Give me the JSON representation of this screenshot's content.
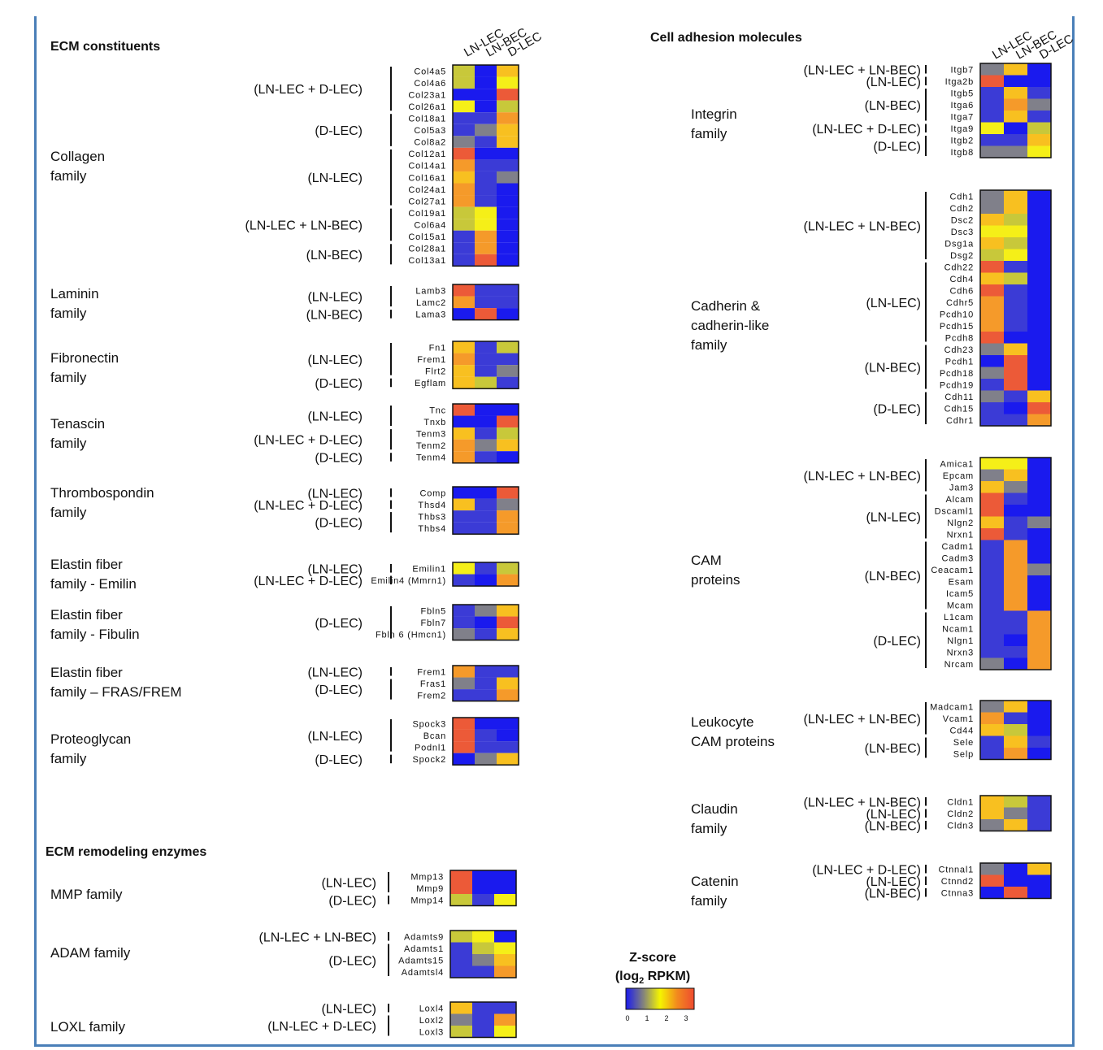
{
  "colorscale": {
    "title_line1": "Z-score",
    "title_line2_pre": "(log",
    "title_line2_sub": "2",
    "title_line2_post": " RPKM)",
    "ticks": [
      "0",
      "1",
      "2",
      "3"
    ],
    "stops": [
      "#1a1aee",
      "#808080",
      "#f5f500",
      "#f28a1e",
      "#ee4a30"
    ]
  },
  "palette": {
    "B": "#1a1aee",
    "b": "#3b3bd6",
    "g": "#80808a",
    "y": "#f5ef18",
    "k": "#c8c83a",
    "o": "#f8c020",
    "O": "#f59a2a",
    "R": "#ec5a38"
  },
  "chart_data": [
    {
      "type": "heatmap",
      "title": "ECM constituents",
      "columns": [
        "LN-LEC",
        "LN-BEC",
        "D-LEC"
      ],
      "families": [
        {
          "name": [
            "Collagen",
            "family"
          ],
          "groups": [
            {
              "label": "(LN-LEC + D-LEC)",
              "rows": [
                [
                  "Col4a5",
                  "kBo"
                ],
                [
                  "Col4a6",
                  "kBy"
                ],
                [
                  "Col23a1",
                  "BBR"
                ],
                [
                  "Col26a1",
                  "yBk"
                ]
              ]
            },
            {
              "label": "(D-LEC)",
              "rows": [
                [
                  "Col18a1",
                  "bbO"
                ],
                [
                  "Col5a3",
                  "bgo"
                ],
                [
                  "Col8a2",
                  "gbo"
                ]
              ]
            },
            {
              "label": "(LN-LEC)",
              "rows": [
                [
                  "Col12a1",
                  "RBB"
                ],
                [
                  "Col14a1",
                  "Obb"
                ],
                [
                  "Col16a1",
                  "obg"
                ],
                [
                  "Col24a1",
                  "ObB"
                ],
                [
                  "Col27a1",
                  "ObB"
                ]
              ]
            },
            {
              "label": "(LN-LEC + LN-BEC)",
              "rows": [
                [
                  "Col19a1",
                  "kyB"
                ],
                [
                  "Col6a4",
                  "kyB"
                ],
                [
                  "Col15a1",
                  "bOB"
                ]
              ]
            },
            {
              "label": "(LN-BEC)",
              "rows": [
                [
                  "Col28a1",
                  "bOB"
                ],
                [
                  "Col13a1",
                  "bRB"
                ]
              ]
            }
          ]
        },
        {
          "name": [
            "Laminin",
            "family"
          ],
          "groups": [
            {
              "label": "(LN-LEC)",
              "rows": [
                [
                  "Lamb3",
                  "Rbb"
                ],
                [
                  "Lamc2",
                  "Obb"
                ]
              ]
            },
            {
              "label": "(LN-BEC)",
              "rows": [
                [
                  "Lama3",
                  "BRB"
                ]
              ]
            }
          ]
        },
        {
          "name": [
            "Fibronectin",
            "family"
          ],
          "groups": [
            {
              "label": "(LN-LEC)",
              "rows": [
                [
                  "Fn1",
                  "obk"
                ],
                [
                  "Frem1",
                  "Obb"
                ],
                [
                  "Flrt2",
                  "obg"
                ]
              ]
            },
            {
              "label": "(D-LEC)",
              "rows": [
                [
                  "Egflam",
                  "okb"
                ]
              ]
            }
          ]
        },
        {
          "name": [
            "Tenascin",
            "family"
          ],
          "groups": [
            {
              "label": "(LN-LEC)",
              "rows": [
                [
                  "Tnc",
                  "RBB"
                ],
                [
                  "Tnxb",
                  "BBR"
                ]
              ]
            },
            {
              "label": "(LN-LEC + D-LEC)",
              "rows": [
                [
                  "Tenm3",
                  "obk"
                ],
                [
                  "Tenm2",
                  "Ogo"
                ]
              ]
            },
            {
              "label": "(D-LEC)",
              "rows": [
                [
                  "Tenm4",
                  "ObB"
                ]
              ]
            }
          ]
        },
        {
          "name": [
            "Thrombospondin",
            "family"
          ],
          "groups": [
            {
              "label": "(LN-LEC)",
              "rows": [
                [
                  "Comp",
                  "BBR"
                ]
              ]
            },
            {
              "label": "(LN-LEC + D-LEC)",
              "rows": [
                [
                  "Thsd4",
                  "obg"
                ]
              ]
            },
            {
              "label": "(D-LEC)",
              "rows": [
                [
                  "Thbs3",
                  "bbO"
                ],
                [
                  "Thbs4",
                  "bbO"
                ]
              ]
            }
          ]
        },
        {
          "name": [
            "Elastin fiber",
            "family - Emilin"
          ],
          "groups": [
            {
              "label": "(LN-LEC)",
              "rows": [
                [
                  "Emilin1",
                  "ybk"
                ]
              ]
            },
            {
              "label": "(LN-LEC + D-LEC)",
              "rows": [
                [
                  "Emilin4 (Mmrn1)",
                  "bBO"
                ]
              ]
            }
          ]
        },
        {
          "name": [
            "Elastin fiber",
            "family - Fibulin"
          ],
          "groups": [
            {
              "label": "(D-LEC)",
              "rows": [
                [
                  "Fbln5",
                  "bgo"
                ],
                [
                  "Fbln7",
                  "bBR"
                ],
                [
                  "Fbln 6 (Hmcn1)",
                  "gbo"
                ]
              ]
            }
          ]
        },
        {
          "name": [
            "Elastin fiber",
            "family – FRAS/FREM"
          ],
          "groups": [
            {
              "label": "(LN-LEC)",
              "rows": [
                [
                  "Frem1",
                  "Obb"
                ]
              ]
            },
            {
              "label": "(D-LEC)",
              "rows": [
                [
                  "Fras1",
                  "gbo"
                ],
                [
                  "Frem2",
                  "bbO"
                ]
              ]
            }
          ]
        },
        {
          "name": [
            "Proteoglycan",
            "family"
          ],
          "groups": [
            {
              "label": "(LN-LEC)",
              "rows": [
                [
                  "Spock3",
                  "RBB"
                ],
                [
                  "Bcan",
                  "RbB"
                ],
                [
                  "Podnl1",
                  "Rbb"
                ]
              ]
            },
            {
              "label": "(D-LEC)",
              "rows": [
                [
                  "Spock2",
                  "Bgo"
                ]
              ]
            }
          ]
        }
      ]
    },
    {
      "type": "heatmap",
      "title": "ECM remodeling enzymes",
      "columns": [
        "LN-LEC",
        "LN-BEC",
        "D-LEC"
      ],
      "families": [
        {
          "name": [
            "MMP family"
          ],
          "groups": [
            {
              "label": "(LN-LEC)",
              "rows": [
                [
                  "Mmp13",
                  "RBB"
                ],
                [
                  "Mmp9",
                  "RBB"
                ]
              ]
            },
            {
              "label": "(D-LEC)",
              "rows": [
                [
                  "Mmp14",
                  "kby"
                ]
              ]
            }
          ]
        },
        {
          "name": [
            "ADAM family"
          ],
          "groups": [
            {
              "label": "(LN-LEC + LN-BEC)",
              "rows": [
                [
                  "Adamts9",
                  "kyB"
                ]
              ]
            },
            {
              "label": "(D-LEC)",
              "rows": [
                [
                  "Adamts1",
                  "bky"
                ],
                [
                  "Adamts15",
                  "bgo"
                ],
                [
                  "Adamtsl4",
                  "bbO"
                ]
              ]
            }
          ]
        },
        {
          "name": [
            "LOXL family"
          ],
          "groups": [
            {
              "label": "(LN-LEC)",
              "rows": [
                [
                  "Loxl4",
                  "obb"
                ]
              ]
            },
            {
              "label": "(LN-LEC + D-LEC)",
              "rows": [
                [
                  "Loxl2",
                  "gbO"
                ],
                [
                  "Loxl3",
                  "kby"
                ]
              ]
            }
          ]
        }
      ]
    },
    {
      "type": "heatmap",
      "title": "Cell adhesion molecules",
      "columns": [
        "LN-LEC",
        "LN-BEC",
        "D-LEC"
      ],
      "families": [
        {
          "name": [
            "Integrin",
            "family"
          ],
          "groups": [
            {
              "label": "(LN-LEC + LN-BEC)",
              "rows": [
                [
                  "Itgb7",
                  "goB"
                ]
              ]
            },
            {
              "label": "(LN-LEC)",
              "rows": [
                [
                  "Itga2b",
                  "RBB"
                ]
              ]
            },
            {
              "label": "(LN-BEC)",
              "rows": [
                [
                  "Itgb5",
                  "bob"
                ],
                [
                  "Itga6",
                  "bOg"
                ],
                [
                  "Itga7",
                  "bob"
                ]
              ]
            },
            {
              "label": "(LN-LEC + D-LEC)",
              "rows": [
                [
                  "Itga9",
                  "yBk"
                ]
              ]
            },
            {
              "label": "(D-LEC)",
              "rows": [
                [
                  "Itgb2",
                  "bbo"
                ],
                [
                  "Itgb8",
                  "ggy"
                ]
              ]
            }
          ]
        },
        {
          "name": [
            "Cadherin &",
            "cadherin-like",
            "family"
          ],
          "groups": [
            {
              "label": "(LN-LEC + LN-BEC)",
              "rows": [
                [
                  "Cdh1",
                  "goB"
                ],
                [
                  "Cdh2",
                  "goB"
                ],
                [
                  "Dsc2",
                  "okB"
                ],
                [
                  "Dsc3",
                  "yyB"
                ],
                [
                  "Dsg1a",
                  "okB"
                ],
                [
                  "Dsg2",
                  "kyB"
                ]
              ]
            },
            {
              "label": "(LN-LEC)",
              "rows": [
                [
                  "Cdh22",
                  "RbB"
                ],
                [
                  "Cdh4",
                  "okB"
                ],
                [
                  "Cdh6",
                  "RbB"
                ],
                [
                  "Cdhr5",
                  "ObB"
                ],
                [
                  "Pcdh10",
                  "ObB"
                ],
                [
                  "Pcdh15",
                  "ObB"
                ],
                [
                  "Pcdh8",
                  "RBB"
                ]
              ]
            },
            {
              "label": "(LN-BEC)",
              "rows": [
                [
                  "Cdh23",
                  "goB"
                ],
                [
                  "Pcdh1",
                  "BRB"
                ],
                [
                  "Pcdh18",
                  "gRB"
                ],
                [
                  "Pcdh19",
                  "bRB"
                ]
              ]
            },
            {
              "label": "(D-LEC)",
              "rows": [
                [
                  "Cdh11",
                  "gbo"
                ],
                [
                  "Cdh15",
                  "bBR"
                ],
                [
                  "Cdhr1",
                  "bbO"
                ]
              ]
            }
          ]
        },
        {
          "name": [
            "CAM",
            "proteins"
          ],
          "groups": [
            {
              "label": "(LN-LEC + LN-BEC)",
              "rows": [
                [
                  "Amica1",
                  "yyB"
                ],
                [
                  "Epcam",
                  "goB"
                ],
                [
                  "Jam3",
                  "ogB"
                ]
              ]
            },
            {
              "label": "(LN-LEC)",
              "rows": [
                [
                  "Alcam",
                  "RbB"
                ],
                [
                  "Dscaml1",
                  "RBB"
                ],
                [
                  "Nlgn2",
                  "obg"
                ],
                [
                  "Nrxn1",
                  "RbB"
                ]
              ]
            },
            {
              "label": "(LN-BEC)",
              "rows": [
                [
                  "Cadm1",
                  "bOB"
                ],
                [
                  "Cadm3",
                  "bOB"
                ],
                [
                  "Ceacam1",
                  "bOg"
                ],
                [
                  "Esam",
                  "bOB"
                ],
                [
                  "Icam5",
                  "bOB"
                ],
                [
                  "Mcam",
                  "bOB"
                ]
              ]
            },
            {
              "label": "(D-LEC)",
              "rows": [
                [
                  "L1cam",
                  "bbO"
                ],
                [
                  "Ncam1",
                  "bbO"
                ],
                [
                  "Nlgn1",
                  "bBO"
                ],
                [
                  "Nrxn3",
                  "bbO"
                ],
                [
                  "Nrcam",
                  "gBO"
                ]
              ]
            }
          ]
        },
        {
          "name": [
            "Leukocyte",
            "CAM proteins"
          ],
          "groups": [
            {
              "label": "(LN-LEC + LN-BEC)",
              "rows": [
                [
                  "Madcam1",
                  "goB"
                ],
                [
                  "Vcam1",
                  "ObB"
                ],
                [
                  "Cd44",
                  "okB"
                ]
              ]
            },
            {
              "label": "(LN-BEC)",
              "rows": [
                [
                  "Sele",
                  "bob"
                ],
                [
                  "Selp",
                  "bOB"
                ]
              ]
            }
          ]
        },
        {
          "name": [
            "Claudin",
            "family"
          ],
          "groups": [
            {
              "label": "(LN-LEC + LN-BEC)",
              "rows": [
                [
                  "Cldn1",
                  "okb"
                ]
              ]
            },
            {
              "label": "(LN-LEC)",
              "rows": [
                [
                  "Cldn2",
                  "ogb"
                ]
              ]
            },
            {
              "label": "(LN-BEC)",
              "rows": [
                [
                  "Cldn3",
                  "gob"
                ]
              ]
            }
          ]
        },
        {
          "name": [
            "Catenin",
            "family"
          ],
          "groups": [
            {
              "label": "(LN-LEC + D-LEC)",
              "rows": [
                [
                  "Ctnnal1",
                  "gBo"
                ]
              ]
            },
            {
              "label": "(LN-LEC)",
              "rows": [
                [
                  "Ctnnd2",
                  "RBB"
                ]
              ]
            },
            {
              "label": "(LN-BEC)",
              "rows": [
                [
                  "Ctnna3",
                  "BRB"
                ]
              ]
            }
          ]
        }
      ]
    }
  ]
}
